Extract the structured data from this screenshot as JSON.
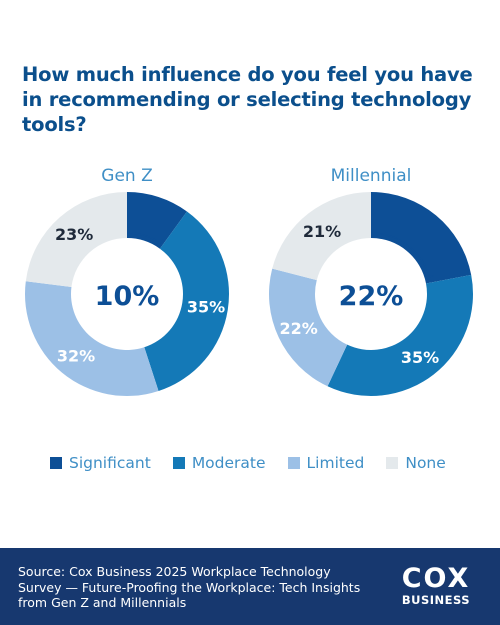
{
  "title": "How much influence do you feel you have in recommending or selecting technology tools?",
  "legend": [
    {
      "label": "Significant",
      "color": "#0d4f96"
    },
    {
      "label": "Moderate",
      "color": "#1479b7"
    },
    {
      "label": "Limited",
      "color": "#9cc0e6"
    },
    {
      "label": "None",
      "color": "#e4e9ec"
    }
  ],
  "chart_data": {
    "type": "pie",
    "variant": "donut",
    "categories": [
      "Significant",
      "Moderate",
      "Limited",
      "None"
    ],
    "charts": [
      {
        "name": "Gen Z",
        "center_label": "10%",
        "values": [
          10,
          35,
          32,
          23
        ],
        "labels": [
          "",
          "35%",
          "32%",
          "23%"
        ]
      },
      {
        "name": "Millennial",
        "center_label": "22%",
        "values": [
          22,
          35,
          22,
          21
        ],
        "labels": [
          "",
          "35%",
          "22%",
          "21%"
        ]
      }
    ]
  },
  "footer": {
    "source": "Source: Cox Business 2025 Workplace Technology Survey — Future-Proofing the Workplace: Tech Insights from Gen Z and Millennials",
    "logo_main": "COX",
    "logo_sub": "BUSINESS"
  }
}
